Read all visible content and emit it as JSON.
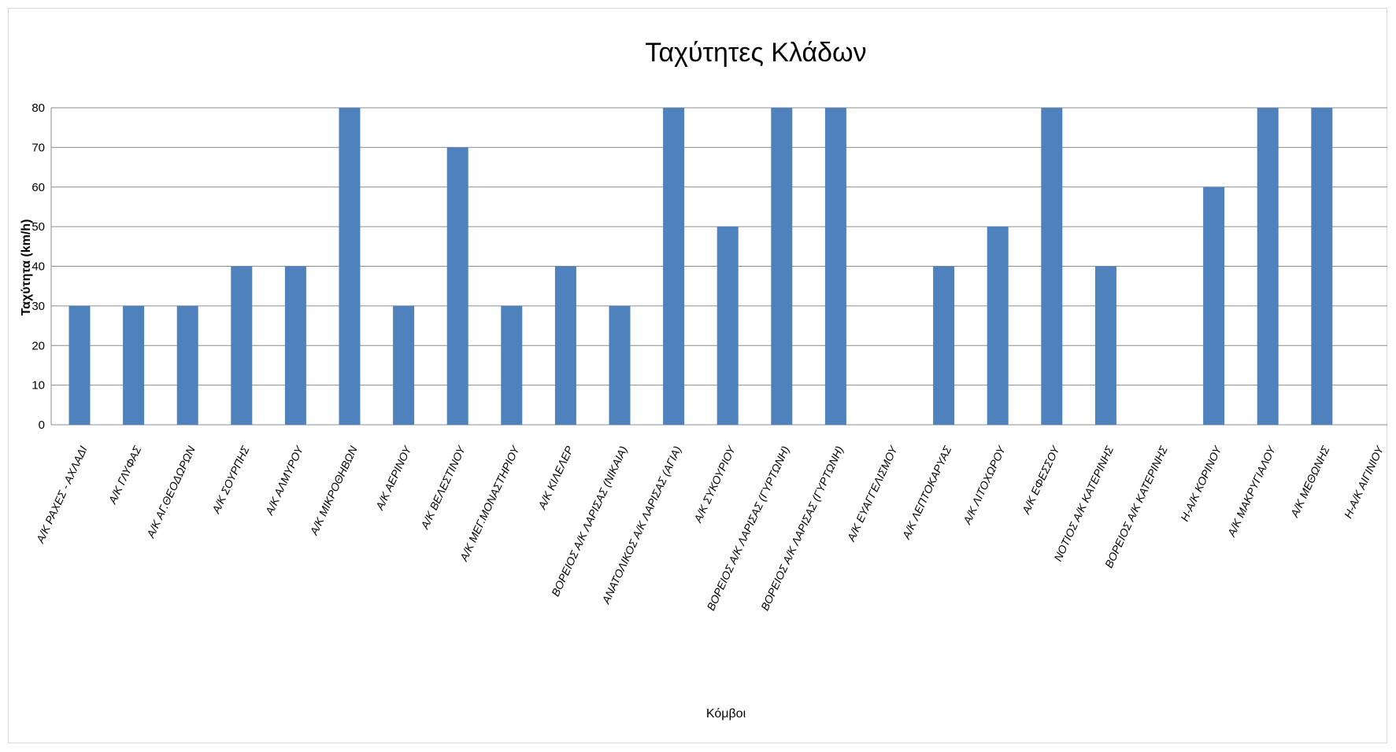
{
  "chart_data": {
    "type": "bar",
    "title": "Ταχύτητες Κλάδων",
    "xlabel": "Κόμβοι",
    "ylabel": "Ταχύτητα (km/h)",
    "ylim": [
      0,
      80
    ],
    "yticks": [
      0,
      10,
      20,
      30,
      40,
      50,
      60,
      70,
      80
    ],
    "grid": true,
    "bar_color": "#4f81bd",
    "grid_color": "#8c8c8c",
    "categories": [
      "Α/Κ ΡΑΧΕΣ - ΑΧΛΑΔΙ",
      "Α/Κ ΓΛΥΦΑΣ",
      "Α/Κ ΑΓ.ΘΕΟΔΩΡΩΝ",
      "Α/Κ ΣΟΥΡΠΗΣ",
      "Α/Κ ΑΛΜΥΡΟΥ",
      "Α/Κ ΜΙΚΡΟΘΗΒΩΝ",
      "Α/Κ ΑΕΡΙΝΟΥ",
      "Α/Κ ΒΕΛΕΣΤΙΝΟΥ",
      "Α/Κ ΜΕΓ.ΜΟΝΑΣΤΗΡΙΟΥ",
      "Α/Κ ΚΙΛΕΛΕΡ",
      "ΒΟΡΕΙΟΣ Α/Κ ΛΑΡΙΣΑΣ (ΝΙΚΑΙΑ)",
      "ΑΝΑΤΟΛΙΚΟΣ Α/Κ ΛΑΡΙΣΑΣ (ΑΓΙΑ)",
      "Α/Κ ΣΥΚΟΥΡΙΟΥ",
      "ΒΟΡΕΙΟΣ Α/Κ ΛΑΡΙΣΑΣ (ΓΥΡΤΩΝΗ)",
      "ΒΟΡΕΙΟΣ Α/Κ ΛΑΡΙΣΑΣ (ΓΥΡΤΩΝΗ)",
      "Α/Κ ΕΥΑΓΓΕΛΙΣΜΟΥ",
      "Α/Κ ΛΕΠΤΟΚΑΡΥΑΣ",
      "Α/Κ ΛΙΤΟΧΩΡΟΥ",
      "Α/Κ ΕΦΕΣΣΟΥ",
      "ΝΟΤΙΟΣ Α/Κ ΚΑΤΕΡΙΝΗΣ",
      "ΒΟΡΕΙΟΣ Α/Κ ΚΑΤΕΡΙΝΗΣ",
      "Η-Α/Κ ΚΟΡΙΝΟΥ",
      "Α/Κ ΜΑΚΡΥΓΙΑΛΟΥ",
      "Α/Κ ΜΕΘΩΝΗΣ",
      "Η-Α/Κ ΑΙΓΙΝΙΟΥ"
    ],
    "values": [
      30,
      30,
      30,
      40,
      40,
      80,
      30,
      70,
      30,
      40,
      30,
      80,
      50,
      80,
      80,
      null,
      40,
      50,
      80,
      40,
      null,
      60,
      80,
      80,
      null
    ]
  }
}
